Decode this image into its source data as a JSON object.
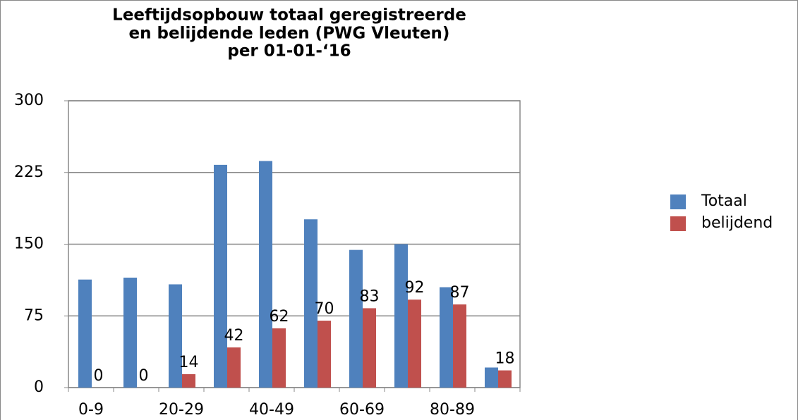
{
  "chart_data": {
    "type": "bar",
    "title": [
      "Leeftijdsopbouw totaal geregistreerde",
      "en belijdende leden (PWG Vleuten)",
      "per 01-01-‘16"
    ],
    "categories": [
      "0-9",
      null,
      "20-29",
      null,
      "40-49",
      null,
      "60-69",
      null,
      "80-89",
      null
    ],
    "series": [
      {
        "name": "Totaal",
        "color": "#4f81bd",
        "values": [
          113,
          115,
          108,
          233,
          237,
          176,
          144,
          150,
          105,
          21
        ]
      },
      {
        "name": "belijdend",
        "color": "#c0504d",
        "values": [
          0,
          0,
          14,
          42,
          62,
          70,
          83,
          92,
          87,
          18
        ],
        "data_labels": true
      }
    ],
    "ylim": [
      0,
      300
    ],
    "yticks": [
      0,
      75,
      150,
      225,
      300
    ],
    "grid": true,
    "legend": "right"
  }
}
